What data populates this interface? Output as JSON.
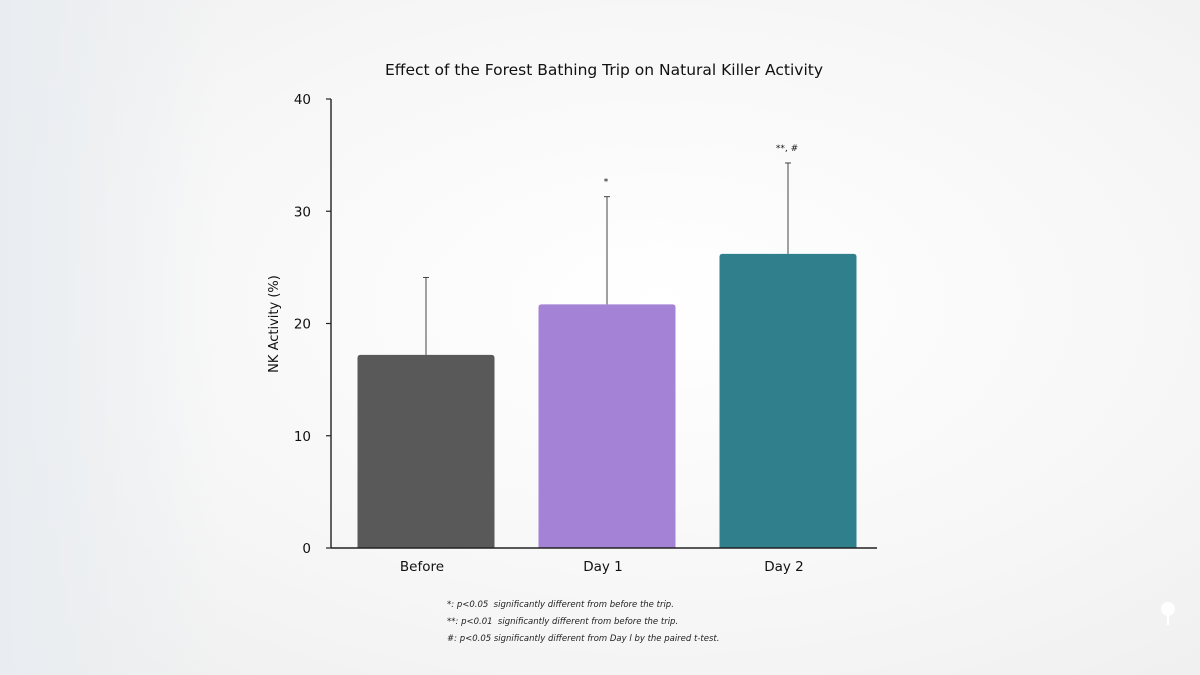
{
  "chart_data": {
    "type": "bar",
    "title": "Effect of the Forest Bathing Trip on Natural Killer Activity",
    "xlabel": "",
    "ylabel": "NK Activity (%)",
    "categories": [
      "Before",
      "Day 1",
      "Day 2"
    ],
    "values": [
      17.2,
      21.7,
      26.2
    ],
    "error_upper": [
      24.1,
      31.3,
      34.3
    ],
    "annotations": [
      "",
      "*",
      "**, #"
    ],
    "colors": [
      "#595959",
      "#a482d6",
      "#2f7f8c"
    ],
    "ylim": [
      0,
      40
    ],
    "yticks": [
      0,
      10,
      20,
      30,
      40
    ],
    "grid": false,
    "legend": "none"
  },
  "footnotes": [
    "*: p<0.05  significantly different from before the trip.",
    "**: p<0.01  significantly different from before the trip.",
    "#: p<0.05 significantly different from Day l by the paired t-test."
  ]
}
